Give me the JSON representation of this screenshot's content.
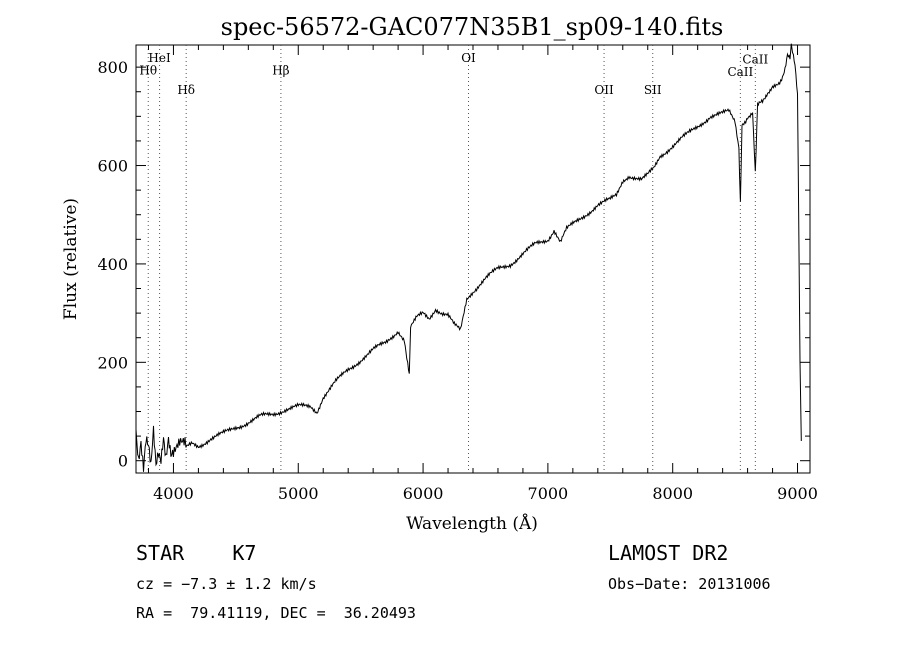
{
  "chart_data": {
    "type": "line",
    "title": "spec-56572-GAC077N35B1_sp09-140.fits",
    "xlabel": "Wavelength (Å)",
    "ylabel": "Flux (relative)",
    "xlim": [
      3700,
      9100
    ],
    "ylim": [
      -25,
      845
    ],
    "xticks": [
      4000,
      5000,
      6000,
      7000,
      8000,
      9000
    ],
    "yticks": [
      0,
      200,
      400,
      600,
      800
    ],
    "grid": false,
    "line_color": "#000000",
    "lines": [
      {
        "label": "Hθ",
        "x": 3798,
        "label_y": 785
      },
      {
        "label": "HeI",
        "x": 3889,
        "label_y": 810
      },
      {
        "label": "Hδ",
        "x": 4102,
        "label_y": 745
      },
      {
        "label": "Hβ",
        "x": 4861,
        "label_y": 785
      },
      {
        "label": "OI",
        "x": 6364,
        "label_y": 810
      },
      {
        "label": "OII",
        "x": 7450,
        "label_y": 745
      },
      {
        "label": "SII",
        "x": 7840,
        "label_y": 745
      },
      {
        "label": "CaII",
        "x": 8542,
        "label_y": 782
      },
      {
        "label": "CaII",
        "x": 8662,
        "label_y": 807
      }
    ],
    "series": [
      {
        "x": [
          3700,
          3720,
          3740,
          3760,
          3780,
          3800,
          3820,
          3840,
          3860,
          3880,
          3900,
          3920,
          3940,
          3960,
          3980,
          4000,
          4050,
          4100,
          4150,
          4200,
          4300,
          4400,
          4500,
          4600,
          4700,
          4800,
          4900,
          5000,
          5100,
          5150,
          5200,
          5250,
          5300,
          5400,
          5500,
          5600,
          5700,
          5800,
          5850,
          5890,
          5900,
          5950,
          6000,
          6050,
          6100,
          6150,
          6200,
          6250,
          6300,
          6350,
          6400,
          6500,
          6600,
          6700,
          6800,
          6900,
          7000,
          7050,
          7100,
          7150,
          7200,
          7300,
          7400,
          7500,
          7550,
          7600,
          7650,
          7700,
          7750,
          7800,
          7850,
          7900,
          8000,
          8100,
          8200,
          8300,
          8400,
          8450,
          8500,
          8530,
          8542,
          8555,
          8600,
          8640,
          8662,
          8680,
          8720,
          8760,
          8800,
          8850,
          8880,
          8900,
          8920,
          8940,
          8950,
          8960,
          8980,
          9000,
          9020,
          9030
        ],
        "values": [
          60,
          10,
          50,
          -10,
          40,
          20,
          -20,
          60,
          0,
          30,
          10,
          45,
          -5,
          30,
          5,
          20,
          30,
          25,
          35,
          30,
          45,
          55,
          68,
          78,
          90,
          95,
          105,
          110,
          110,
          100,
          130,
          145,
          160,
          185,
          205,
          225,
          240,
          265,
          245,
          180,
          270,
          290,
          300,
          290,
          310,
          300,
          295,
          275,
          265,
          330,
          345,
          370,
          390,
          400,
          420,
          440,
          450,
          470,
          445,
          470,
          480,
          500,
          520,
          530,
          540,
          570,
          580,
          575,
          570,
          580,
          595,
          620,
          640,
          660,
          680,
          700,
          705,
          710,
          690,
          640,
          525,
          680,
          700,
          710,
          590,
          720,
          730,
          750,
          760,
          770,
          780,
          800,
          830,
          820,
          845,
          830,
          800,
          740,
          200,
          40
        ]
      }
    ]
  },
  "info": {
    "object": "STAR    K7",
    "survey": "LAMOST DR2",
    "cz": "cz = −7.3 ± 1.2 km/s",
    "obs_date": "Obs−Date: 20131006",
    "coords": "RA =  79.41119, DEC =  36.20493"
  }
}
